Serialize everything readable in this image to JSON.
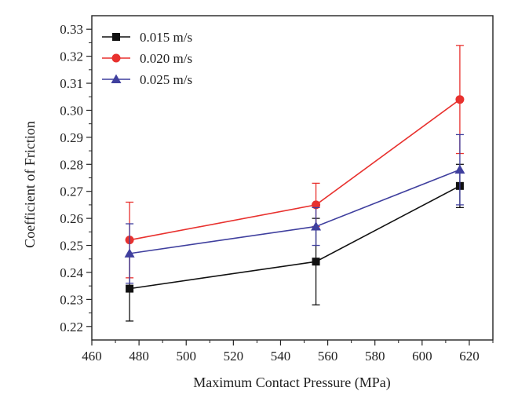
{
  "chart_data": {
    "type": "line",
    "title": "",
    "xlabel": "Maximum Contact Pressure (MPa)",
    "ylabel": "Coefficient of Friction",
    "xlim": [
      460,
      630
    ],
    "ylim": [
      0.215,
      0.335
    ],
    "xticks": [
      460,
      480,
      500,
      520,
      540,
      560,
      580,
      600,
      620
    ],
    "xtick_labels": [
      "460",
      "480",
      "500",
      "520",
      "540",
      "560",
      "580",
      "600",
      "620"
    ],
    "yticks": [
      0.22,
      0.23,
      0.24,
      0.25,
      0.26,
      0.27,
      0.28,
      0.29,
      0.3,
      0.31,
      0.32,
      0.33
    ],
    "ytick_labels": [
      "0.22",
      "0.23",
      "0.24",
      "0.25",
      "0.26",
      "0.27",
      "0.28",
      "0.29",
      "0.30",
      "0.31",
      "0.32",
      "0.33"
    ],
    "grid": false,
    "legend_position": "top-left",
    "x": [
      476,
      555,
      616
    ],
    "series": [
      {
        "name": "0.015 m/s",
        "color": "#111111",
        "marker": "square",
        "values": [
          0.234,
          0.244,
          0.272
        ],
        "error": [
          0.012,
          0.016,
          0.008
        ]
      },
      {
        "name": "0.020 m/s",
        "color": "#e8312e",
        "marker": "circle",
        "values": [
          0.252,
          0.265,
          0.304
        ],
        "error": [
          0.014,
          0.008,
          0.02
        ]
      },
      {
        "name": "0.025 m/s",
        "color": "#3f3f9e",
        "marker": "triangle",
        "values": [
          0.247,
          0.257,
          0.278
        ],
        "error": [
          0.011,
          0.007,
          0.013
        ]
      }
    ]
  }
}
